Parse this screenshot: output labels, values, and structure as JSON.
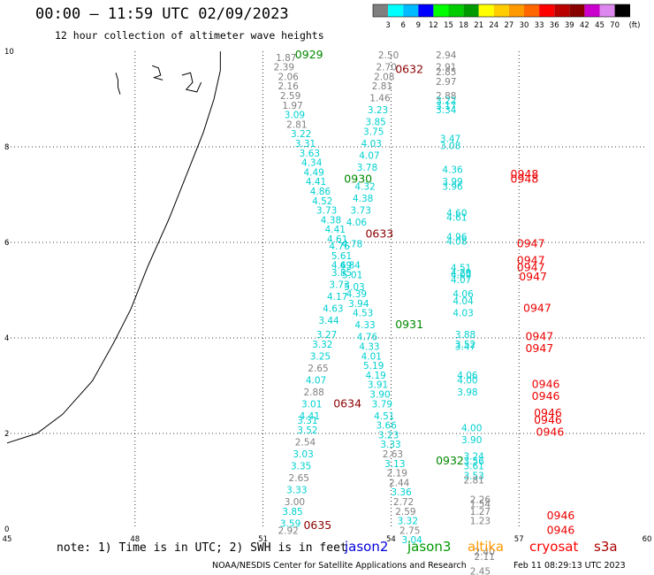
{
  "title": "00:00 – 11:59 UTC 02/09/2023",
  "subtitle": "12 hour collection of altimeter wave heights",
  "note": "note: 1) Time is in UTC; 2) SWH is in feet",
  "satellites": [
    {
      "name": "jason2",
      "color": "#0000dd"
    },
    {
      "name": "jason3",
      "color": "#009900"
    },
    {
      "name": "altika",
      "color": "#ff9900"
    },
    {
      "name": "cryosat",
      "color": "#ff0000"
    },
    {
      "name": "s3a",
      "color": "#aa0000"
    }
  ],
  "footer_credit": "NOAA/NESDIS Center for Satellite Applications and Research",
  "footer_timestamp": "Feb 11 08:29:13 UTC 2023",
  "scale": {
    "unit": "(ft)",
    "labels": [
      "3",
      "6",
      "9",
      "12",
      "15",
      "18",
      "21",
      "24",
      "27",
      "30",
      "33",
      "36",
      "39",
      "42",
      "45",
      "70"
    ],
    "colors": [
      "#808080",
      "#00ffff",
      "#00bbff",
      "#0000ff",
      "#00ff00",
      "#00cc00",
      "#009900",
      "#ffff00",
      "#ffcc00",
      "#ff9900",
      "#ff6600",
      "#ff0000",
      "#bb0000",
      "#880000",
      "#cc00cc",
      "#dd88ee",
      "#000000"
    ]
  },
  "chart_data": {
    "type": "scatter",
    "xlim": [
      45,
      60
    ],
    "ylim": [
      0,
      10
    ],
    "x_ticks": [
      "45",
      "48",
      "51",
      "54",
      "57",
      "60"
    ],
    "y_ticks": [
      "0",
      "2",
      "4",
      "6",
      "8",
      "10"
    ],
    "grid": true,
    "coastline": [
      [
        50.0,
        10.0
      ],
      [
        50.0,
        9.6
      ],
      [
        49.85,
        9.0
      ],
      [
        49.6,
        8.3
      ],
      [
        49.2,
        7.4
      ],
      [
        48.8,
        6.5
      ],
      [
        48.3,
        5.5
      ],
      [
        47.9,
        4.6
      ],
      [
        47.5,
        3.9
      ],
      [
        47.0,
        3.1
      ],
      [
        46.3,
        2.4
      ],
      [
        45.7,
        2.0
      ],
      [
        45.0,
        1.8
      ]
    ],
    "islands": [
      {
        "points": [
          [
            47.55,
            9.55
          ],
          [
            47.6,
            9.4
          ],
          [
            47.6,
            9.25
          ],
          [
            47.65,
            9.1
          ]
        ]
      },
      {
        "points": [
          [
            48.4,
            9.7
          ],
          [
            48.55,
            9.65
          ],
          [
            48.6,
            9.5
          ],
          [
            48.45,
            9.45
          ],
          [
            48.65,
            9.4
          ]
        ]
      },
      {
        "points": [
          [
            49.1,
            9.5
          ],
          [
            49.3,
            9.55
          ],
          [
            49.35,
            9.35
          ],
          [
            49.2,
            9.2
          ],
          [
            49.45,
            9.15
          ],
          [
            49.55,
            9.35
          ]
        ]
      }
    ],
    "swh_labels": [
      {
        "x": 51.3,
        "y": 9.8,
        "v": "1.87",
        "c": "#808080"
      },
      {
        "x": 51.25,
        "y": 9.6,
        "v": "2.39",
        "c": "#808080"
      },
      {
        "x": 51.35,
        "y": 9.4,
        "v": "2.06",
        "c": "#808080"
      },
      {
        "x": 51.35,
        "y": 9.2,
        "v": "2.16",
        "c": "#808080"
      },
      {
        "x": 51.4,
        "y": 9.0,
        "v": "2.59",
        "c": "#808080"
      },
      {
        "x": 51.45,
        "y": 8.8,
        "v": "1.97",
        "c": "#808080"
      },
      {
        "x": 51.5,
        "y": 8.6,
        "v": "3.09",
        "c": "#00d0d0"
      },
      {
        "x": 51.55,
        "y": 8.4,
        "v": "2.81",
        "c": "#808080"
      },
      {
        "x": 51.65,
        "y": 8.2,
        "v": "3.22",
        "c": "#00d0d0"
      },
      {
        "x": 51.75,
        "y": 8.0,
        "v": "3.31",
        "c": "#00d0d0"
      },
      {
        "x": 51.85,
        "y": 7.8,
        "v": "3.63",
        "c": "#00d0d0"
      },
      {
        "x": 51.9,
        "y": 7.6,
        "v": "4.34",
        "c": "#00d0d0"
      },
      {
        "x": 51.95,
        "y": 7.4,
        "v": "4.49",
        "c": "#00d0d0"
      },
      {
        "x": 52.0,
        "y": 7.2,
        "v": "4.41",
        "c": "#00d0d0"
      },
      {
        "x": 52.1,
        "y": 7.0,
        "v": "4.86",
        "c": "#00d0d0"
      },
      {
        "x": 52.15,
        "y": 6.8,
        "v": "4.52",
        "c": "#00d0d0"
      },
      {
        "x": 52.25,
        "y": 6.6,
        "v": "3.73",
        "c": "#00d0d0"
      },
      {
        "x": 52.35,
        "y": 6.4,
        "v": "4.38",
        "c": "#00d0d0"
      },
      {
        "x": 52.45,
        "y": 6.2,
        "v": "4.41",
        "c": "#00d0d0"
      },
      {
        "x": 52.5,
        "y": 6.0,
        "v": "4.61",
        "c": "#00d0d0"
      },
      {
        "x": 52.55,
        "y": 5.85,
        "v": "4.76",
        "c": "#00d0d0"
      },
      {
        "x": 52.6,
        "y": 5.65,
        "v": "5.61",
        "c": "#00d0d0"
      },
      {
        "x": 52.6,
        "y": 5.45,
        "v": "4.69",
        "c": "#00d0d0"
      },
      {
        "x": 52.6,
        "y": 5.3,
        "v": "3.85",
        "c": "#00d0d0"
      },
      {
        "x": 52.55,
        "y": 5.05,
        "v": "3.73",
        "c": "#00d0d0"
      },
      {
        "x": 52.5,
        "y": 4.8,
        "v": "4.17",
        "c": "#00d0d0"
      },
      {
        "x": 52.4,
        "y": 4.55,
        "v": "4.63",
        "c": "#00d0d0"
      },
      {
        "x": 52.3,
        "y": 4.3,
        "v": "3.44",
        "c": "#00d0d0"
      },
      {
        "x": 52.25,
        "y": 4.0,
        "v": "3.27",
        "c": "#00d0d0"
      },
      {
        "x": 52.15,
        "y": 3.8,
        "v": "3.32",
        "c": "#00d0d0"
      },
      {
        "x": 52.1,
        "y": 3.55,
        "v": "3.25",
        "c": "#00d0d0"
      },
      {
        "x": 52.05,
        "y": 3.3,
        "v": "2.65",
        "c": "#808080"
      },
      {
        "x": 52.0,
        "y": 3.05,
        "v": "4.07",
        "c": "#00d0d0"
      },
      {
        "x": 51.95,
        "y": 2.8,
        "v": "2.88",
        "c": "#808080"
      },
      {
        "x": 51.9,
        "y": 2.55,
        "v": "3.01",
        "c": "#00d0d0"
      },
      {
        "x": 51.85,
        "y": 2.3,
        "v": "4.41",
        "c": "#00d0d0"
      },
      {
        "x": 51.8,
        "y": 2.2,
        "v": "3.31",
        "c": "#00d0d0"
      },
      {
        "x": 51.8,
        "y": 2.0,
        "v": "3.52",
        "c": "#00d0d0"
      },
      {
        "x": 51.75,
        "y": 1.75,
        "v": "2.54",
        "c": "#808080"
      },
      {
        "x": 51.7,
        "y": 1.5,
        "v": "3.03",
        "c": "#00d0d0"
      },
      {
        "x": 51.65,
        "y": 1.25,
        "v": "3.35",
        "c": "#00d0d0"
      },
      {
        "x": 51.6,
        "y": 1.0,
        "v": "2.65",
        "c": "#808080"
      },
      {
        "x": 51.55,
        "y": 0.75,
        "v": "3.33",
        "c": "#00d0d0"
      },
      {
        "x": 51.5,
        "y": 0.5,
        "v": "3.00",
        "c": "#808080"
      },
      {
        "x": 51.45,
        "y": 0.3,
        "v": "3.85",
        "c": "#00d0d0"
      },
      {
        "x": 51.4,
        "y": 0.05,
        "v": "3.59",
        "c": "#00d0d0"
      },
      {
        "x": 51.35,
        "y": -0.1,
        "v": "2.92",
        "c": "#808080"
      },
      {
        "x": 53.7,
        "y": 9.85,
        "v": "2.50",
        "c": "#808080"
      },
      {
        "x": 53.65,
        "y": 9.6,
        "v": "2.70",
        "c": "#808080"
      },
      {
        "x": 53.6,
        "y": 9.4,
        "v": "2.08",
        "c": "#808080"
      },
      {
        "x": 53.55,
        "y": 9.2,
        "v": "2.81",
        "c": "#808080"
      },
      {
        "x": 53.5,
        "y": 8.95,
        "v": "1.46",
        "c": "#808080"
      },
      {
        "x": 53.45,
        "y": 8.7,
        "v": "3.23",
        "c": "#00d0d0"
      },
      {
        "x": 53.4,
        "y": 8.45,
        "v": "3.85",
        "c": "#00d0d0"
      },
      {
        "x": 53.35,
        "y": 8.25,
        "v": "3.75",
        "c": "#00d0d0"
      },
      {
        "x": 53.3,
        "y": 8.0,
        "v": "4.03",
        "c": "#00d0d0"
      },
      {
        "x": 53.25,
        "y": 7.75,
        "v": "4.07",
        "c": "#00d0d0"
      },
      {
        "x": 53.2,
        "y": 7.5,
        "v": "3.78",
        "c": "#00d0d0"
      },
      {
        "x": 53.15,
        "y": 7.1,
        "v": "4.32",
        "c": "#00d0d0"
      },
      {
        "x": 53.1,
        "y": 6.85,
        "v": "4.38",
        "c": "#00d0d0"
      },
      {
        "x": 53.05,
        "y": 6.6,
        "v": "3.73",
        "c": "#00d0d0"
      },
      {
        "x": 52.95,
        "y": 6.35,
        "v": "4.06",
        "c": "#00d0d0"
      },
      {
        "x": 52.85,
        "y": 5.9,
        "v": "4.78",
        "c": "#00d0d0"
      },
      {
        "x": 52.8,
        "y": 5.45,
        "v": "4.84",
        "c": "#00d0d0"
      },
      {
        "x": 52.85,
        "y": 5.25,
        "v": "5.01",
        "c": "#00d0d0"
      },
      {
        "x": 52.9,
        "y": 5.0,
        "v": "5.03",
        "c": "#00d0d0"
      },
      {
        "x": 52.95,
        "y": 4.85,
        "v": "4.39",
        "c": "#00d0d0"
      },
      {
        "x": 53.0,
        "y": 4.65,
        "v": "3.94",
        "c": "#00d0d0"
      },
      {
        "x": 53.1,
        "y": 4.45,
        "v": "4.53",
        "c": "#00d0d0"
      },
      {
        "x": 53.15,
        "y": 4.2,
        "v": "4.33",
        "c": "#00d0d0"
      },
      {
        "x": 53.2,
        "y": 3.95,
        "v": "4.76",
        "c": "#00d0d0"
      },
      {
        "x": 53.25,
        "y": 3.75,
        "v": "4.33",
        "c": "#00d0d0"
      },
      {
        "x": 53.3,
        "y": 3.55,
        "v": "4.01",
        "c": "#00d0d0"
      },
      {
        "x": 53.35,
        "y": 3.35,
        "v": "5.19",
        "c": "#00d0d0"
      },
      {
        "x": 53.4,
        "y": 3.15,
        "v": "4.19",
        "c": "#00d0d0"
      },
      {
        "x": 53.45,
        "y": 2.95,
        "v": "3.91",
        "c": "#00d0d0"
      },
      {
        "x": 53.5,
        "y": 2.75,
        "v": "3.90",
        "c": "#00d0d0"
      },
      {
        "x": 53.55,
        "y": 2.55,
        "v": "3.79",
        "c": "#00d0d0"
      },
      {
        "x": 53.6,
        "y": 2.3,
        "v": "4.51",
        "c": "#00d0d0"
      },
      {
        "x": 53.65,
        "y": 2.1,
        "v": "3.66",
        "c": "#00d0d0"
      },
      {
        "x": 53.7,
        "y": 1.9,
        "v": "3.23",
        "c": "#00d0d0"
      },
      {
        "x": 53.75,
        "y": 1.7,
        "v": "3.33",
        "c": "#00d0d0"
      },
      {
        "x": 53.8,
        "y": 1.5,
        "v": "2.63",
        "c": "#808080"
      },
      {
        "x": 53.85,
        "y": 1.3,
        "v": "3.13",
        "c": "#00d0d0"
      },
      {
        "x": 53.9,
        "y": 1.1,
        "v": "2.19",
        "c": "#808080"
      },
      {
        "x": 53.95,
        "y": 0.9,
        "v": "2.44",
        "c": "#808080"
      },
      {
        "x": 54.0,
        "y": 0.7,
        "v": "3.36",
        "c": "#00d0d0"
      },
      {
        "x": 54.05,
        "y": 0.5,
        "v": "2.72",
        "c": "#808080"
      },
      {
        "x": 54.1,
        "y": 0.3,
        "v": "2.59",
        "c": "#808080"
      },
      {
        "x": 54.15,
        "y": 0.1,
        "v": "3.32",
        "c": "#00d0d0"
      },
      {
        "x": 54.2,
        "y": -0.1,
        "v": "2.75",
        "c": "#808080"
      },
      {
        "x": 54.25,
        "y": -0.3,
        "v": "3.04",
        "c": "#00d0d0"
      },
      {
        "x": 55.05,
        "y": 9.85,
        "v": "2.94",
        "c": "#808080"
      },
      {
        "x": 55.05,
        "y": 9.6,
        "v": "2.91",
        "c": "#808080"
      },
      {
        "x": 55.05,
        "y": 9.5,
        "v": "2.85",
        "c": "#808080"
      },
      {
        "x": 55.05,
        "y": 9.3,
        "v": "2.97",
        "c": "#808080"
      },
      {
        "x": 55.05,
        "y": 9.0,
        "v": "2.88",
        "c": "#808080"
      },
      {
        "x": 55.05,
        "y": 8.9,
        "v": "3.22",
        "c": "#00d0d0"
      },
      {
        "x": 55.05,
        "y": 8.8,
        "v": "3.17",
        "c": "#00d0d0"
      },
      {
        "x": 55.05,
        "y": 8.7,
        "v": "3.34",
        "c": "#00d0d0"
      },
      {
        "x": 55.15,
        "y": 8.1,
        "v": "3.47",
        "c": "#00d0d0"
      },
      {
        "x": 55.15,
        "y": 7.95,
        "v": "3.08",
        "c": "#00d0d0"
      },
      {
        "x": 55.2,
        "y": 7.45,
        "v": "4.36",
        "c": "#00d0d0"
      },
      {
        "x": 55.2,
        "y": 7.2,
        "v": "3.99",
        "c": "#00d0d0"
      },
      {
        "x": 55.2,
        "y": 7.1,
        "v": "3.96",
        "c": "#00d0d0"
      },
      {
        "x": 55.3,
        "y": 6.55,
        "v": "4.60",
        "c": "#00d0d0"
      },
      {
        "x": 55.3,
        "y": 6.45,
        "v": "4.61",
        "c": "#00d0d0"
      },
      {
        "x": 55.3,
        "y": 6.05,
        "v": "4.96",
        "c": "#00d0d0"
      },
      {
        "x": 55.3,
        "y": 5.95,
        "v": "4.08",
        "c": "#00d0d0"
      },
      {
        "x": 55.4,
        "y": 5.4,
        "v": "4.51",
        "c": "#00d0d0"
      },
      {
        "x": 55.4,
        "y": 5.3,
        "v": "4.29",
        "c": "#00d0d0"
      },
      {
        "x": 55.4,
        "y": 5.25,
        "v": "4.09",
        "c": "#00d0d0"
      },
      {
        "x": 55.4,
        "y": 5.15,
        "v": "4.07",
        "c": "#00d0d0"
      },
      {
        "x": 55.45,
        "y": 4.85,
        "v": "4.06",
        "c": "#00d0d0"
      },
      {
        "x": 55.45,
        "y": 4.7,
        "v": "4.04",
        "c": "#00d0d0"
      },
      {
        "x": 55.45,
        "y": 4.45,
        "v": "4.03",
        "c": "#00d0d0"
      },
      {
        "x": 55.5,
        "y": 4.0,
        "v": "3.88",
        "c": "#00d0d0"
      },
      {
        "x": 55.5,
        "y": 3.8,
        "v": "3.52",
        "c": "#00d0d0"
      },
      {
        "x": 55.5,
        "y": 3.75,
        "v": "3.47",
        "c": "#00d0d0"
      },
      {
        "x": 55.55,
        "y": 3.15,
        "v": "4.06",
        "c": "#00d0d0"
      },
      {
        "x": 55.55,
        "y": 3.05,
        "v": "4.00",
        "c": "#00d0d0"
      },
      {
        "x": 55.55,
        "y": 2.8,
        "v": "3.98",
        "c": "#00d0d0"
      },
      {
        "x": 55.65,
        "y": 2.05,
        "v": "4.00",
        "c": "#00d0d0"
      },
      {
        "x": 55.65,
        "y": 1.8,
        "v": "3.90",
        "c": "#00d0d0"
      },
      {
        "x": 55.7,
        "y": 1.45,
        "v": "3.24",
        "c": "#00d0d0"
      },
      {
        "x": 55.7,
        "y": 1.35,
        "v": "3.56",
        "c": "#00d0d0"
      },
      {
        "x": 55.7,
        "y": 1.25,
        "v": "3.61",
        "c": "#00d0d0"
      },
      {
        "x": 55.7,
        "y": 1.05,
        "v": "3.53",
        "c": "#00d0d0"
      },
      {
        "x": 55.7,
        "y": 0.95,
        "v": "2.81",
        "c": "#808080"
      },
      {
        "x": 55.85,
        "y": 0.55,
        "v": "2.26",
        "c": "#808080"
      },
      {
        "x": 55.85,
        "y": 0.45,
        "v": "1.54",
        "c": "#808080"
      },
      {
        "x": 55.85,
        "y": 0.3,
        "v": "1.27",
        "c": "#808080"
      },
      {
        "x": 55.85,
        "y": 0.1,
        "v": "1.23",
        "c": "#808080"
      },
      {
        "x": 55.95,
        "y": -0.55,
        "v": "2.40",
        "c": "#808080"
      },
      {
        "x": 55.95,
        "y": -0.65,
        "v": "2.11",
        "c": "#808080"
      },
      {
        "x": 55.85,
        "y": -0.95,
        "v": "2.45",
        "c": "#808080"
      }
    ],
    "pass_labels": [
      {
        "x": 51.75,
        "y": 9.85,
        "t": "0929",
        "c": "#008800"
      },
      {
        "x": 54.1,
        "y": 9.55,
        "t": "0632",
        "c": "#8b0000"
      },
      {
        "x": 52.9,
        "y": 7.25,
        "t": "0930",
        "c": "#008800"
      },
      {
        "x": 53.4,
        "y": 6.1,
        "t": "0633",
        "c": "#8b0000"
      },
      {
        "x": 54.1,
        "y": 4.2,
        "t": "0931",
        "c": "#008800"
      },
      {
        "x": 52.65,
        "y": 2.55,
        "t": "0634",
        "c": "#8b0000"
      },
      {
        "x": 55.05,
        "y": 1.35,
        "t": "0932",
        "c": "#008800"
      },
      {
        "x": 51.95,
        "y": 0.0,
        "t": "0635",
        "c": "#8b0000"
      },
      {
        "x": 56.8,
        "y": 7.35,
        "t": "0948",
        "c": "#ee0000"
      },
      {
        "x": 56.8,
        "y": 7.25,
        "t": "0948",
        "c": "#ee0000"
      },
      {
        "x": 56.95,
        "y": 5.9,
        "t": "0947",
        "c": "#ee0000"
      },
      {
        "x": 56.95,
        "y": 5.55,
        "t": "0947",
        "c": "#ee0000"
      },
      {
        "x": 56.95,
        "y": 5.4,
        "t": "0947",
        "c": "#ee0000"
      },
      {
        "x": 57.0,
        "y": 5.2,
        "t": "0947",
        "c": "#ee0000"
      },
      {
        "x": 57.1,
        "y": 4.55,
        "t": "0947",
        "c": "#ee0000"
      },
      {
        "x": 57.15,
        "y": 3.95,
        "t": "0947",
        "c": "#ee0000"
      },
      {
        "x": 57.15,
        "y": 3.7,
        "t": "0947",
        "c": "#ee0000"
      },
      {
        "x": 57.3,
        "y": 2.95,
        "t": "0946",
        "c": "#ee0000"
      },
      {
        "x": 57.3,
        "y": 2.7,
        "t": "0946",
        "c": "#ee0000"
      },
      {
        "x": 57.35,
        "y": 2.35,
        "t": "0946",
        "c": "#ee0000"
      },
      {
        "x": 57.35,
        "y": 2.2,
        "t": "0946",
        "c": "#ee0000"
      },
      {
        "x": 57.4,
        "y": 1.95,
        "t": "0946",
        "c": "#ee0000"
      },
      {
        "x": 57.65,
        "y": 0.2,
        "t": "0946",
        "c": "#ee0000"
      },
      {
        "x": 57.65,
        "y": -0.1,
        "t": "0946",
        "c": "#ee0000"
      }
    ]
  }
}
